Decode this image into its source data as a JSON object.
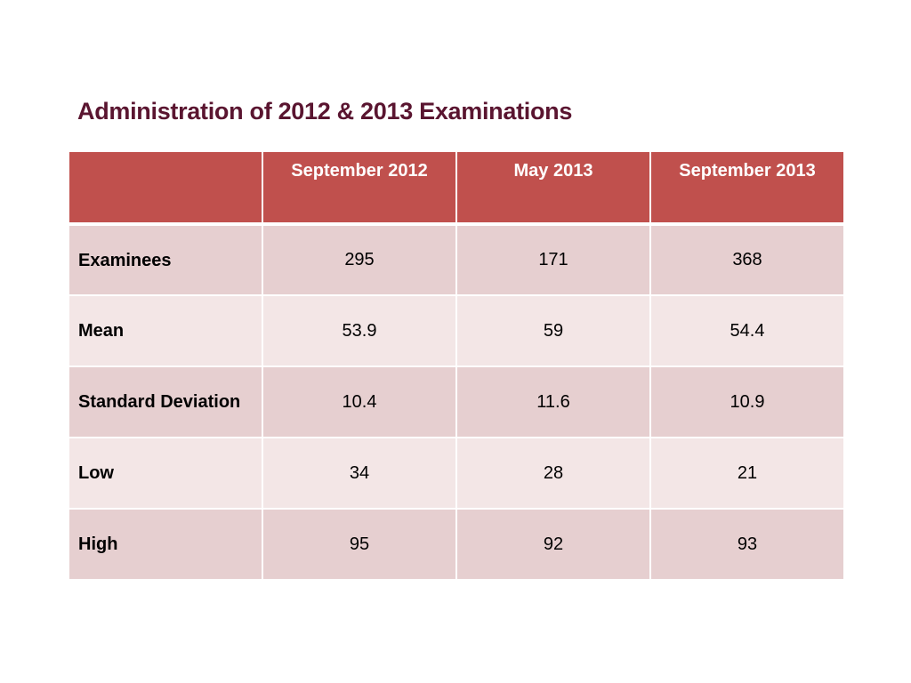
{
  "slide": {
    "title": "Administration of 2012 & 2013 Examinations"
  },
  "table": {
    "corner": "",
    "columns": [
      "September 2012",
      "May 2013",
      "September 2013"
    ],
    "rows": [
      {
        "label": "Examinees",
        "values": [
          "295",
          "171",
          "368"
        ]
      },
      {
        "label": "Mean",
        "values": [
          "53.9",
          "59",
          "54.4"
        ]
      },
      {
        "label": "Standard Deviation",
        "values": [
          "10.4",
          "11.6",
          "10.9"
        ]
      },
      {
        "label": "Low",
        "values": [
          "34",
          "28",
          "21"
        ]
      },
      {
        "label": "High",
        "values": [
          "95",
          "92",
          "93"
        ]
      }
    ]
  },
  "colors": {
    "title": "#5a1530",
    "header_fill": "#c0504d",
    "band_dark": "#e6cfd0",
    "band_light": "#f3e6e6"
  }
}
